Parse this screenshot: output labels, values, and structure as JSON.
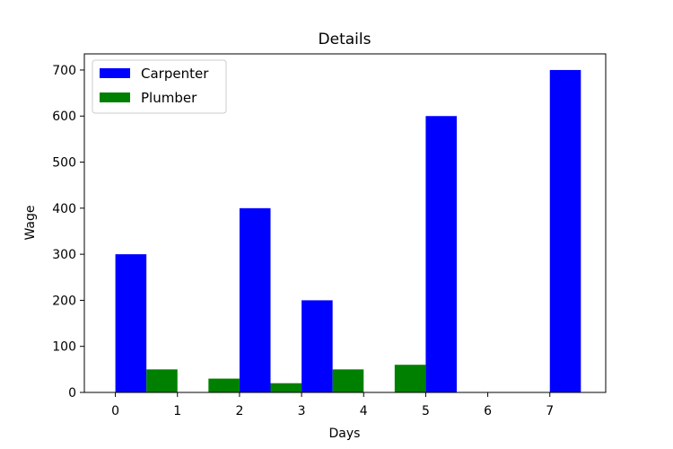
{
  "chart_data": {
    "type": "bar",
    "title": "Details",
    "xlabel": "Days",
    "ylabel": "Wage",
    "xlim": [
      -0.5,
      7.9
    ],
    "ylim": [
      0,
      735
    ],
    "xticks": [
      0,
      1,
      2,
      3,
      4,
      5,
      6,
      7
    ],
    "yticks": [
      0,
      100,
      200,
      300,
      400,
      500,
      600,
      700
    ],
    "bar_width": 0.5,
    "grid": false,
    "legend_position": "top-left",
    "series": [
      {
        "name": "Carpenter",
        "color": "#0000ff",
        "x": [
          0.25,
          2.25,
          3.25,
          5.25,
          7.25
        ],
        "values": [
          300,
          400,
          200,
          600,
          700
        ]
      },
      {
        "name": "Plumber",
        "color": "#008000",
        "x": [
          0.75,
          1.75,
          2.75,
          3.75,
          4.75
        ],
        "values": [
          50,
          30,
          20,
          50,
          60
        ]
      }
    ]
  }
}
